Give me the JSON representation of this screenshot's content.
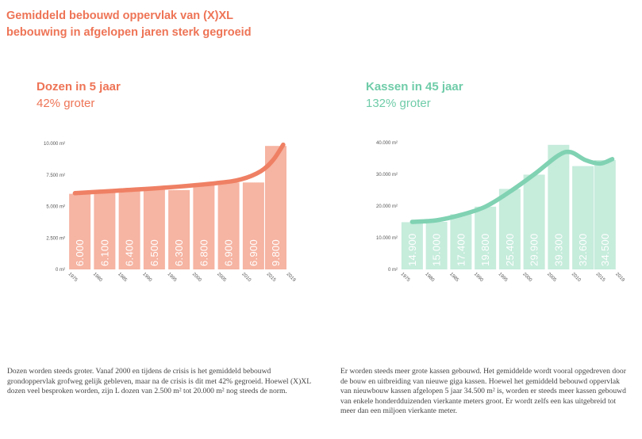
{
  "headline": {
    "line1": "Gemiddeld bebouwd oppervlak van (X)XL",
    "line2": "bebouwing in afgelopen jaren sterk gegroeid"
  },
  "colors": {
    "accent_orange": "#ee7456",
    "accent_green": "#6fcca9",
    "bar_orange": "#f6b4a2",
    "trend_orange": "#ef8064",
    "bar_green": "#c6ecdc",
    "trend_green": "#80d2b3",
    "axis_text": "#555555",
    "body_text": "#444444"
  },
  "left_panel": {
    "title": "Dozen in 5 jaar",
    "subtitle": "42% groter",
    "description": "Dozen worden steeds groter. Vanaf 2000 en tijdens de crisis is het gemiddeld bebouwd grondoppervlak grofweg gelijk gebleven, maar na de crisis is dit met 42% gegroeid. Hoewel (X)XL dozen veel besproken worden, zijn L dozen van 2.500 m² tot 20.000 m² nog steeds de norm."
  },
  "right_panel": {
    "title": "Kassen in 45 jaar",
    "subtitle": "132% groter",
    "description": "Er worden steeds meer grote kassen gebouwd. Het gemiddelde wordt vooral opgedreven door de bouw en uitbreiding van nieuwe giga kassen. Hoewel het gemiddeld bebouwd oppervlak van nieuwbouw kassen afgelopen 5 jaar 34.500 m² is, worden er steeds meer kassen gebouwd van enkele honderdduizenden vierkante meters groot. Er wordt zelfs een kas uitgebreid tot meer dan een miljoen vierkante meter."
  },
  "chart_data": [
    {
      "type": "bar",
      "title": "Dozen in 5 jaar",
      "subtitle": "42% groter",
      "xlabel": "",
      "ylabel": "",
      "unit": "m²",
      "ylim": [
        0,
        10000
      ],
      "yticks": [
        {
          "value": 0,
          "label": "0 m²"
        },
        {
          "value": 2500,
          "label": "2.500 m²"
        },
        {
          "value": 5000,
          "label": "5.000 m²"
        },
        {
          "value": 7500,
          "label": "7.500 m²"
        },
        {
          "value": 10000,
          "label": "10.000 m²"
        }
      ],
      "xticks": [
        "1975",
        "1980",
        "1985",
        "1990",
        "1995",
        "2000",
        "2005",
        "2010",
        "2015",
        "2019"
      ],
      "bars": [
        {
          "x": 1977.5,
          "value": 6000,
          "label": "6.000"
        },
        {
          "x": 1982.5,
          "value": 6100,
          "label": "6.100"
        },
        {
          "x": 1987.5,
          "value": 6400,
          "label": "6.400"
        },
        {
          "x": 1992.5,
          "value": 6500,
          "label": "6.500"
        },
        {
          "x": 1997.5,
          "value": 6300,
          "label": "6.300"
        },
        {
          "x": 2002.5,
          "value": 6800,
          "label": "6.800"
        },
        {
          "x": 2007.5,
          "value": 6900,
          "label": "6.900"
        },
        {
          "x": 2012.5,
          "value": 6900,
          "label": "6.900"
        },
        {
          "x": 2017,
          "value": 9800,
          "label": "9.800"
        }
      ],
      "trend": [
        {
          "x": 1976.5,
          "y": 6050
        },
        {
          "x": 1985,
          "y": 6250
        },
        {
          "x": 1995,
          "y": 6500
        },
        {
          "x": 2005,
          "y": 6850
        },
        {
          "x": 2010,
          "y": 7150
        },
        {
          "x": 2014,
          "y": 7800
        },
        {
          "x": 2016.5,
          "y": 8700
        },
        {
          "x": 2018.5,
          "y": 9900
        }
      ],
      "grid": false,
      "legend": "none"
    },
    {
      "type": "bar",
      "title": "Kassen in 45 jaar",
      "subtitle": "132% groter",
      "xlabel": "",
      "ylabel": "",
      "unit": "m²",
      "ylim": [
        0,
        40000
      ],
      "yticks": [
        {
          "value": 0,
          "label": "0 m²"
        },
        {
          "value": 10000,
          "label": "10.000 m²"
        },
        {
          "value": 20000,
          "label": "20.000 m²"
        },
        {
          "value": 30000,
          "label": "30.000 m²"
        },
        {
          "value": 40000,
          "label": "40.000 m²"
        }
      ],
      "xticks": [
        "1975",
        "1980",
        "1985",
        "1990",
        "1995",
        "2000",
        "2005",
        "2010",
        "2015",
        "2019"
      ],
      "bars": [
        {
          "x": 1977.5,
          "value": 14900,
          "label": "14.900"
        },
        {
          "x": 1982.5,
          "value": 15000,
          "label": "15.000"
        },
        {
          "x": 1987.5,
          "value": 17400,
          "label": "17.400"
        },
        {
          "x": 1992.5,
          "value": 19800,
          "label": "19.800"
        },
        {
          "x": 1997.5,
          "value": 25400,
          "label": "25.400"
        },
        {
          "x": 2002.5,
          "value": 29900,
          "label": "29.900"
        },
        {
          "x": 2007.5,
          "value": 39300,
          "label": "39.300"
        },
        {
          "x": 2012.5,
          "value": 32600,
          "label": "32.600"
        },
        {
          "x": 2017,
          "value": 34500,
          "label": "34.500"
        }
      ],
      "trend": [
        {
          "x": 1977.5,
          "y": 15000
        },
        {
          "x": 1982.5,
          "y": 15500
        },
        {
          "x": 1987.5,
          "y": 17200
        },
        {
          "x": 1992.5,
          "y": 19800
        },
        {
          "x": 1997.5,
          "y": 24500
        },
        {
          "x": 2002.5,
          "y": 30000
        },
        {
          "x": 2007.5,
          "y": 36000
        },
        {
          "x": 2010,
          "y": 37000
        },
        {
          "x": 2013,
          "y": 34500
        },
        {
          "x": 2016,
          "y": 33400
        },
        {
          "x": 2018.5,
          "y": 34800
        }
      ],
      "grid": false,
      "legend": "none"
    }
  ]
}
